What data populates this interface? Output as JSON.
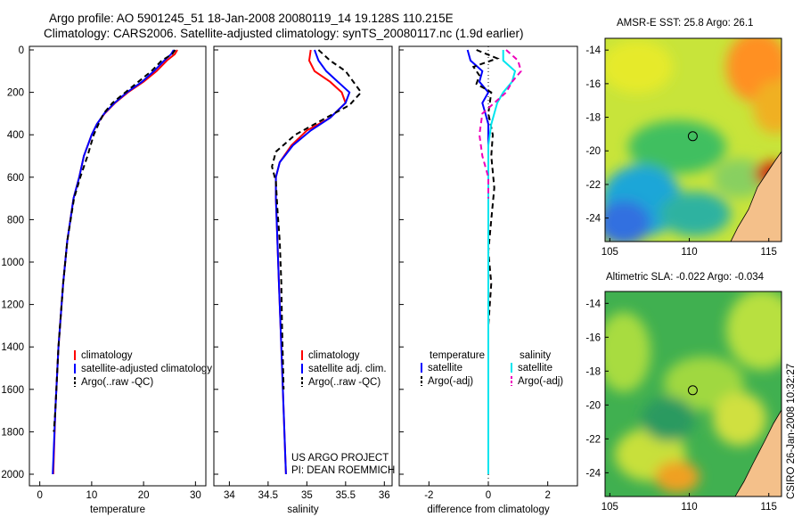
{
  "header": {
    "line1": "Argo profile: AO 5901245_51 18-Jan-2008 20080119_14 19.128S 110.215E",
    "line2": "Climatology: CARS2006. Satellite-adjusted climatology: synTS_20080117.nc (1.9d earlier)"
  },
  "panels": {
    "temperature": {
      "xlabel": "temperature",
      "legend": [
        "climatology",
        "satellite-adjusted climatology",
        "Argo(..raw -QC)"
      ]
    },
    "salinity": {
      "xlabel": "salinity",
      "legend": [
        "climatology",
        "satellite adj. clim.",
        "Argo(..raw -QC)"
      ],
      "credit1": "US ARGO PROJECT",
      "credit2": "PI: DEAN ROEMMICH"
    },
    "difference": {
      "xlabel": "difference from climatology",
      "legend_left_title": "temperature",
      "legend_left": [
        "satellite",
        "Argo(-adj)"
      ],
      "legend_right_title": "salinity",
      "legend_right": [
        "satellite",
        "Argo(-adj)"
      ]
    }
  },
  "maps": {
    "sst_title": "AMSR-E SST: 25.8 Argo: 26.1",
    "sla_title": "Altimetric SLA: -0.022 Argo: -0.034",
    "xticks": [
      "105",
      "110",
      "115"
    ],
    "yticks": [
      "-14",
      "-16",
      "-18",
      "-20",
      "-22",
      "-24"
    ],
    "profile_lon": 110.215,
    "profile_lat": -19.128
  },
  "timestamp": "CSIRO 26-Jan-2008 10:32:27",
  "colors": {
    "climatology": "#ff0000",
    "satellite": "#0000ff",
    "argo": "#000000",
    "sal_satellite": "#00e5ee",
    "sal_argo": "#ee00bb"
  },
  "chart_data": [
    {
      "type": "line",
      "id": "temperature",
      "xlabel": "temperature",
      "ylim": [
        0,
        2000
      ],
      "xlim": [
        -2,
        32
      ],
      "y_reversed": true,
      "xticks": [
        0,
        10,
        20,
        30
      ],
      "yticks": [
        0,
        200,
        400,
        600,
        800,
        1000,
        1200,
        1400,
        1600,
        1800,
        2000
      ],
      "series": [
        {
          "name": "climatology",
          "color": "#ff0000",
          "dash": "",
          "x": [
            26.5,
            26.0,
            24.5,
            22.5,
            20.0,
            17.0,
            14.5,
            12.5,
            11.0,
            10.0,
            8.5,
            7.6,
            6.5,
            5.3,
            4.5,
            3.6,
            3.0,
            2.6
          ],
          "y": [
            0,
            20,
            50,
            100,
            150,
            200,
            250,
            300,
            350,
            400,
            500,
            600,
            700,
            900,
            1100,
            1400,
            1700,
            2000
          ]
        },
        {
          "name": "satellite-adjusted climatology",
          "color": "#0000ff",
          "dash": "",
          "x": [
            25.8,
            25.3,
            24.0,
            22.0,
            19.7,
            16.8,
            14.4,
            12.4,
            11.0,
            10.0,
            8.5,
            7.6,
            6.5,
            5.3,
            4.5,
            3.6,
            3.0,
            2.5
          ],
          "y": [
            0,
            20,
            50,
            100,
            150,
            200,
            250,
            300,
            350,
            400,
            500,
            600,
            700,
            900,
            1100,
            1400,
            1700,
            2000
          ]
        },
        {
          "name": "Argo(..raw -QC)",
          "color": "#000000",
          "dash": "6,4",
          "x": [
            26.1,
            25.5,
            23.5,
            21.5,
            19.0,
            16.5,
            14.0,
            12.3,
            11.3,
            10.4,
            9.2,
            7.8,
            6.6,
            5.3,
            4.5,
            3.6,
            3.0,
            2.7
          ],
          "y": [
            0,
            20,
            50,
            100,
            150,
            200,
            250,
            300,
            350,
            400,
            500,
            600,
            700,
            900,
            1100,
            1400,
            1700,
            1800
          ]
        }
      ]
    },
    {
      "type": "line",
      "id": "salinity",
      "xlabel": "salinity",
      "ylim": [
        0,
        2000
      ],
      "xlim": [
        33.8,
        36.1
      ],
      "y_reversed": true,
      "xticks": [
        34,
        34.5,
        35,
        35.5,
        36
      ],
      "series": [
        {
          "name": "climatology",
          "color": "#ff0000",
          "dash": "",
          "x": [
            35.05,
            35.03,
            35.1,
            35.3,
            35.45,
            35.5,
            35.3,
            35.0,
            34.8,
            34.65,
            34.6,
            34.6,
            34.62,
            34.64,
            34.67,
            34.7,
            34.72,
            34.73
          ],
          "y": [
            0,
            50,
            100,
            150,
            200,
            250,
            320,
            380,
            450,
            530,
            600,
            700,
            900,
            1100,
            1400,
            1700,
            1900,
            2000
          ]
        },
        {
          "name": "satellite adj. clim.",
          "color": "#0000ff",
          "dash": "",
          "x": [
            35.1,
            35.15,
            35.25,
            35.4,
            35.55,
            35.5,
            35.3,
            35.05,
            34.82,
            34.65,
            34.6,
            34.6,
            34.62,
            34.64,
            34.67,
            34.7,
            34.72,
            34.73
          ],
          "y": [
            0,
            50,
            100,
            150,
            200,
            250,
            320,
            380,
            450,
            530,
            600,
            700,
            900,
            1100,
            1400,
            1700,
            1900,
            2000
          ]
        },
        {
          "name": "Argo(..raw -QC)",
          "color": "#000000",
          "dash": "6,4",
          "x": [
            35.15,
            35.3,
            35.5,
            35.6,
            35.7,
            35.55,
            35.2,
            34.85,
            34.6,
            34.55,
            34.6,
            34.62,
            34.65,
            34.67,
            34.68,
            34.7
          ],
          "y": [
            0,
            50,
            100,
            150,
            200,
            260,
            330,
            400,
            480,
            550,
            620,
            750,
            900,
            1100,
            1300,
            1600
          ]
        }
      ]
    },
    {
      "type": "line",
      "id": "difference",
      "xlabel": "difference from climatology",
      "ylim": [
        0,
        2000
      ],
      "xlim": [
        -3,
        3
      ],
      "y_reversed": true,
      "xticks": [
        -2,
        0,
        2
      ],
      "series": [
        {
          "name": "temperature satellite",
          "color": "#0000ff",
          "dash": "",
          "x": [
            -0.7,
            -0.6,
            -0.2,
            -0.3,
            0.0,
            -0.2,
            -0.1,
            0.0,
            0.0,
            0.0,
            0.0,
            0.0,
            0.0
          ],
          "y": [
            0,
            50,
            100,
            150,
            200,
            250,
            300,
            350,
            400,
            600,
            1000,
            1400,
            2000
          ]
        },
        {
          "name": "temperature Argo(-adj)",
          "color": "#000000",
          "dash": "6,4",
          "x": [
            -0.4,
            0.3,
            -0.5,
            -0.3,
            -0.4,
            0.1,
            0.0,
            0.15,
            0.1,
            0.2,
            0.1,
            0.0,
            0.1,
            0.0
          ],
          "y": [
            0,
            40,
            80,
            120,
            160,
            200,
            300,
            400,
            500,
            650,
            800,
            950,
            1100,
            1300
          ]
        },
        {
          "name": "salinity satellite",
          "color": "#00e5ee",
          "dash": "",
          "x": [
            0.5,
            0.5,
            0.9,
            0.8,
            0.5,
            0.3,
            0.1,
            0.0,
            0.0,
            0.0,
            0.0,
            0.0
          ],
          "y": [
            0,
            50,
            100,
            150,
            200,
            250,
            350,
            450,
            600,
            900,
            1400,
            2000
          ]
        },
        {
          "name": "salinity Argo(-adj)",
          "color": "#ee00bb",
          "dash": "6,4",
          "x": [
            0.6,
            1.0,
            1.1,
            0.8,
            0.6,
            -0.2,
            -0.3,
            -0.2,
            0.0,
            0.0
          ],
          "y": [
            0,
            50,
            100,
            150,
            200,
            300,
            400,
            500,
            600,
            700
          ]
        }
      ]
    }
  ]
}
